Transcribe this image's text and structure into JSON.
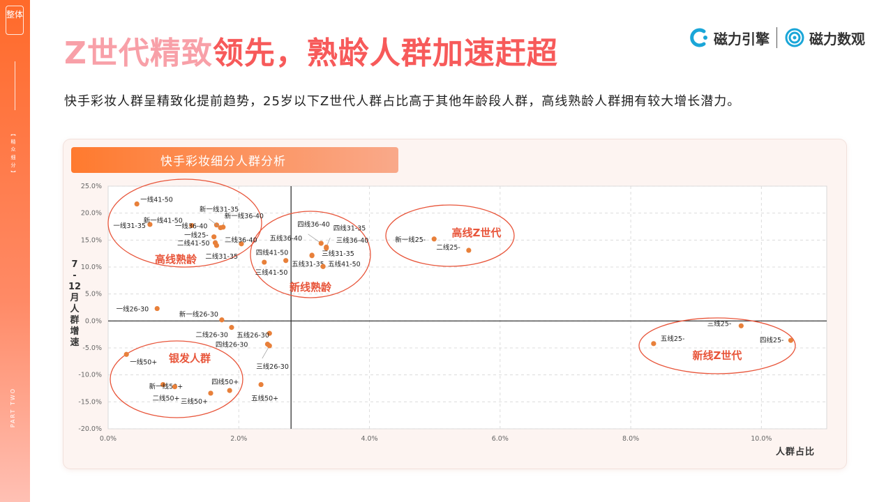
{
  "sidebar": {
    "tag": "整体",
    "section_label": "【 精 众 细 分 】",
    "part_label": "PART TWO"
  },
  "header": {
    "title_main": "Z世代精致领先，熟龄人群加速赶超",
    "subtitle": "快手彩妆人群呈精致化提前趋势，25岁以下Z世代人群占比高于其他年龄段人群，高线熟龄人群拥有较大增长潜力。",
    "logo1": "磁力引擎",
    "logo2": "磁力数观"
  },
  "colors": {
    "accent": "#f05a28",
    "point": "#e8803a",
    "ellipse": "#e8553a"
  },
  "chart_data": {
    "type": "scatter",
    "title": "快手彩妆细分人群分析",
    "xlabel": "人群占比",
    "ylabel": "7-12月人群增速",
    "xlim": [
      0,
      0.11
    ],
    "ylim": [
      -0.2,
      0.25
    ],
    "x_ticks": [
      "0.0%",
      "2.0%",
      "4.0%",
      "6.0%",
      "8.0%",
      "10.0%"
    ],
    "y_ticks": [
      "25.0%",
      "20.0%",
      "15.0%",
      "10.0%",
      "5.0%",
      "0.0%",
      "-5.0%",
      "-10.0%",
      "-15.0%",
      "-20.0%"
    ],
    "grid": true,
    "reference_lines": {
      "x": 0.028,
      "y": 0.0
    },
    "points": [
      {
        "label": "一线41-50",
        "x": 0.0044,
        "y": 0.217
      },
      {
        "label": "一线31-35",
        "x": 0.0064,
        "y": 0.179
      },
      {
        "label": "新一线41-50",
        "x": 0.0128,
        "y": 0.177
      },
      {
        "label": "一线36-40",
        "x": 0.0166,
        "y": 0.178
      },
      {
        "label": "新一线31-35",
        "x": 0.0172,
        "y": 0.173
      },
      {
        "label": "新一线36-40",
        "x": 0.0176,
        "y": 0.174
      },
      {
        "label": "一线25-",
        "x": 0.0162,
        "y": 0.156
      },
      {
        "label": "二线41-50",
        "x": 0.0164,
        "y": 0.145
      },
      {
        "label": "二线36-40",
        "x": 0.0204,
        "y": 0.143
      },
      {
        "label": "二线31-35",
        "x": 0.0166,
        "y": 0.14
      },
      {
        "label": "四线36-40",
        "x": 0.0326,
        "y": 0.144
      },
      {
        "label": "四线31-35",
        "x": 0.0334,
        "y": 0.137
      },
      {
        "label": "三线36-40",
        "x": 0.0334,
        "y": 0.135
      },
      {
        "label": "五线36-40",
        "x": 0.0312,
        "y": 0.122
      },
      {
        "label": "三线31-35",
        "x": 0.0312,
        "y": 0.121
      },
      {
        "label": "四线41-50",
        "x": 0.0272,
        "y": 0.112
      },
      {
        "label": "三线41-50",
        "x": 0.0239,
        "y": 0.109
      },
      {
        "label": "五线31-35",
        "x": 0.0329,
        "y": 0.101
      },
      {
        "label": "五线41-50",
        "x": 0.0329,
        "y": 0.101
      },
      {
        "label": "新一线25-",
        "x": 0.0499,
        "y": 0.152
      },
      {
        "label": "二线25-",
        "x": 0.0552,
        "y": 0.131
      },
      {
        "label": "一线26-30",
        "x": 0.0075,
        "y": 0.023
      },
      {
        "label": "新一线26-30",
        "x": 0.0174,
        "y": 0.002
      },
      {
        "label": "二线26-30",
        "x": 0.0189,
        "y": -0.012
      },
      {
        "label": "五线26-30",
        "x": 0.0247,
        "y": -0.023
      },
      {
        "label": "四线26-30",
        "x": 0.0244,
        "y": -0.043
      },
      {
        "label": "三线26-30",
        "x": 0.0247,
        "y": -0.046
      },
      {
        "label": "一线50+",
        "x": 0.0028,
        "y": -0.062
      },
      {
        "label": "新一线50+",
        "x": 0.0084,
        "y": -0.118
      },
      {
        "label": "二线50+",
        "x": 0.0102,
        "y": -0.122
      },
      {
        "label": "四线50+",
        "x": 0.0186,
        "y": -0.129
      },
      {
        "label": "三线50+",
        "x": 0.0157,
        "y": -0.134
      },
      {
        "label": "五线50+",
        "x": 0.0234,
        "y": -0.118
      },
      {
        "label": "三线25-",
        "x": 0.0969,
        "y": -0.009
      },
      {
        "label": "五线25-",
        "x": 0.0835,
        "y": -0.042
      },
      {
        "label": "四线25-",
        "x": 0.1045,
        "y": -0.036
      }
    ],
    "groups": [
      {
        "label": "高线熟龄"
      },
      {
        "label": "新线熟龄"
      },
      {
        "label": "高线Z世代"
      },
      {
        "label": "银发人群"
      },
      {
        "label": "新线Z世代"
      }
    ]
  }
}
